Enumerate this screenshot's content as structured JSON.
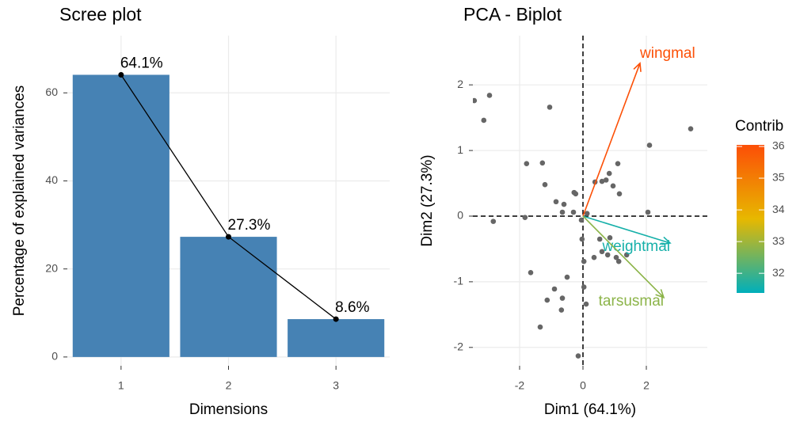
{
  "chart_data": [
    {
      "type": "bar",
      "title": "Scree plot",
      "x_label": "Dimensions",
      "y_label": "Percentage of explained variances",
      "categories": [
        "1",
        "2",
        "3"
      ],
      "values": [
        64.1,
        27.3,
        8.6
      ],
      "value_labels": [
        "64.1%",
        "27.3%",
        "8.6%"
      ],
      "color": "#4682b4",
      "line_color": "#000000",
      "ylim": [
        -2,
        73
      ],
      "yticks": [
        0,
        20,
        40,
        60
      ],
      "grid": true
    },
    {
      "type": "biplot",
      "title": "PCA - Biplot",
      "x_label": "Dim1 (64.1%)",
      "y_label": "Dim2 (27.3%)",
      "xlim": [
        -3.475,
        3.925
      ],
      "ylim": [
        -2.28,
        2.75
      ],
      "xticks": [
        -2,
        0,
        2
      ],
      "yticks": [
        -2,
        -1,
        0,
        1,
        2
      ],
      "grid": true,
      "reference_lines": {
        "x": 0,
        "y": 0
      },
      "points": {
        "color": "#666666",
        "x": [
          -3.43,
          -2.95,
          -3.13,
          -1.05,
          -2.83,
          -1.78,
          -1.28,
          -1.2,
          -1.83,
          -0.85,
          -0.6,
          -0.65,
          -0.3,
          -0.28,
          -0.23,
          0.38,
          0.6,
          0.83,
          0.95,
          0.73,
          1.1,
          1.15,
          2.1,
          2.05,
          3.4,
          -0.03,
          0.53,
          0.85,
          0.6,
          0.78,
          1.05,
          1.38,
          0.35,
          1.13,
          -1.65,
          -0.5,
          -0.9,
          -1.13,
          -0.65,
          0.03,
          0.1,
          -0.68,
          -1.35,
          -0.15,
          0.03,
          0.13,
          -0.05
        ],
        "y": [
          1.76,
          1.84,
          1.46,
          1.66,
          -0.08,
          0.8,
          0.81,
          0.48,
          -0.02,
          0.22,
          0.18,
          0.06,
          0.06,
          0.36,
          0.34,
          0.52,
          0.53,
          0.65,
          0.46,
          0.55,
          0.8,
          0.34,
          1.08,
          0.06,
          1.33,
          -0.35,
          -0.35,
          -0.33,
          -0.54,
          -0.59,
          -0.63,
          -0.59,
          -0.63,
          -0.69,
          -0.86,
          -0.93,
          -1.11,
          -1.28,
          -1.25,
          -1.08,
          -1.34,
          -1.43,
          -1.69,
          -2.13,
          -0.69,
          0.04,
          -0.06
        ]
      },
      "variables": [
        {
          "name": "wingmal",
          "x": 1.8,
          "y": 2.33,
          "contrib": 36.0
        },
        {
          "name": "weightmal",
          "x": 2.75,
          "y": -0.41,
          "contrib": 31.6
        },
        {
          "name": "tarsusmal",
          "x": 2.55,
          "y": -1.24,
          "contrib": 32.8
        }
      ],
      "legend_title": "Contrib",
      "palette": [
        "#00AFBB",
        "#E7B800",
        "#FC4E07"
      ],
      "clim": [
        31.38,
        36.05
      ],
      "cticks": [
        32,
        33,
        34,
        35,
        36
      ]
    }
  ]
}
